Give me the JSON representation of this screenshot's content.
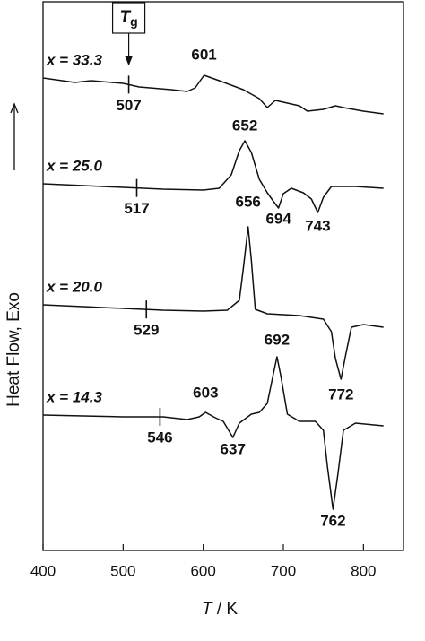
{
  "chart_data": {
    "type": "line",
    "xlabel": {
      "symbol": "T",
      "unit": " / K"
    },
    "ylabel": "Heat Flow,  Exo",
    "marker_label": {
      "main": "T",
      "sub": "g"
    },
    "xlim": [
      400,
      850
    ],
    "xticks": [
      400,
      500,
      600,
      700,
      800
    ],
    "ylim": [
      0,
      612
    ],
    "series": [
      {
        "name": "x = 33.3",
        "color": "#111111",
        "tg": 507,
        "peaks": [
          601
        ],
        "x": [
          400,
          440,
          460,
          500,
          520,
          560,
          580,
          590,
          601,
          620,
          650,
          670,
          680,
          690,
          720,
          730,
          750,
          765,
          775,
          800,
          825
        ],
        "values": [
          527,
          522,
          524,
          521,
          517,
          514,
          512,
          516,
          530,
          524,
          514,
          504,
          494,
          502,
          496,
          490,
          492,
          496,
          494,
          490,
          487
        ]
      },
      {
        "name": "x = 25.0",
        "color": "#111111",
        "tg": 517,
        "peaks": [
          652,
          694,
          743
        ],
        "x": [
          400,
          450,
          500,
          550,
          600,
          620,
          635,
          645,
          652,
          660,
          670,
          680,
          688,
          694,
          700,
          710,
          725,
          735,
          743,
          750,
          760,
          790,
          825
        ],
        "values": [
          409,
          407,
          405,
          403,
          402,
          404,
          419,
          446,
          457,
          444,
          414,
          399,
          389,
          382,
          398,
          404,
          399,
          392,
          377,
          394,
          406,
          406,
          404
        ]
      },
      {
        "name": "x = 20.0",
        "color": "#111111",
        "tg": 529,
        "peaks": [
          656,
          772
        ],
        "x": [
          400,
          450,
          500,
          550,
          600,
          630,
          645,
          650,
          656,
          660,
          665,
          680,
          720,
          750,
          760,
          765,
          772,
          778,
          785,
          800,
          825
        ],
        "values": [
          274,
          272,
          270,
          268,
          267,
          268,
          279,
          314,
          361,
          324,
          269,
          264,
          262,
          258,
          244,
          214,
          191,
          219,
          249,
          252,
          249
        ]
      },
      {
        "name": "x = 14.3",
        "color": "#111111",
        "tg": 546,
        "peaks": [
          603,
          637,
          692,
          762
        ],
        "x": [
          400,
          450,
          500,
          550,
          580,
          595,
          603,
          615,
          625,
          637,
          645,
          660,
          670,
          680,
          688,
          692,
          697,
          705,
          720,
          740,
          750,
          755,
          762,
          768,
          775,
          790,
          825
        ],
        "values": [
          151,
          150,
          149,
          149,
          146,
          149,
          154,
          148,
          144,
          126,
          142,
          152,
          154,
          164,
          199,
          216,
          194,
          152,
          144,
          144,
          134,
          94,
          46,
          84,
          134,
          142,
          139
        ]
      }
    ]
  }
}
